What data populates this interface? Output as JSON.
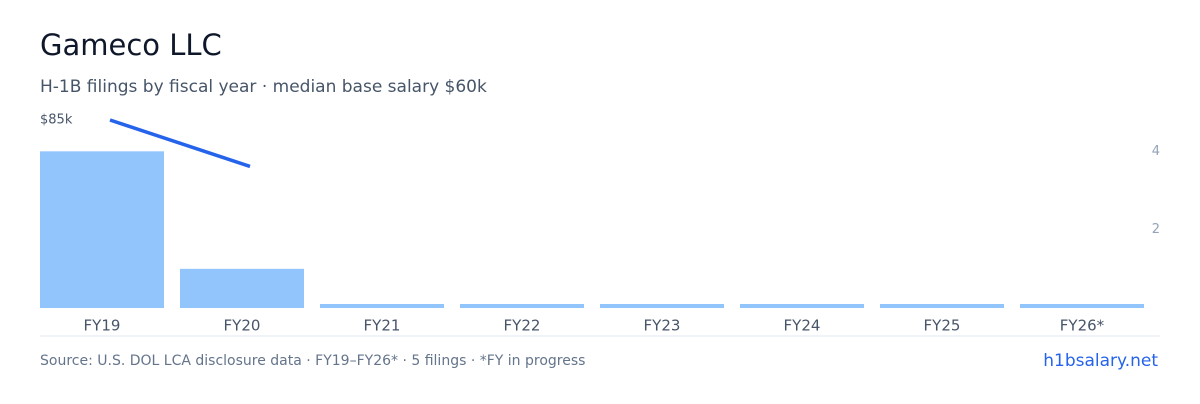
{
  "chart_data": {
    "type": "bar-line",
    "title": "Gameco LLC",
    "subtitle": "H-1B filings by fiscal year · median base salary $60k",
    "categories": [
      "FY19",
      "FY20",
      "FY21",
      "FY22",
      "FY23",
      "FY24",
      "FY25",
      "FY26*"
    ],
    "series": [
      {
        "type": "bar",
        "axis": "y2",
        "color": "#93c5fd",
        "values": [
          4,
          1,
          0,
          0,
          0,
          0,
          0,
          0
        ]
      },
      {
        "type": "line",
        "color": "#2563eb",
        "values": [
          85000,
          64000,
          null,
          null,
          null,
          null,
          null,
          null
        ]
      }
    ],
    "ylim": [
      0,
      85000
    ],
    "yticks": [
      {
        "value": 85000,
        "label": "$85k"
      }
    ],
    "y2lim": [
      0,
      4.8
    ],
    "y2ticks": [
      2,
      4
    ],
    "source": "Source: U.S. DOL LCA disclosure data · FY19–FY26* · 5 filings · *FY in progress",
    "link": "h1bsalary.net"
  }
}
